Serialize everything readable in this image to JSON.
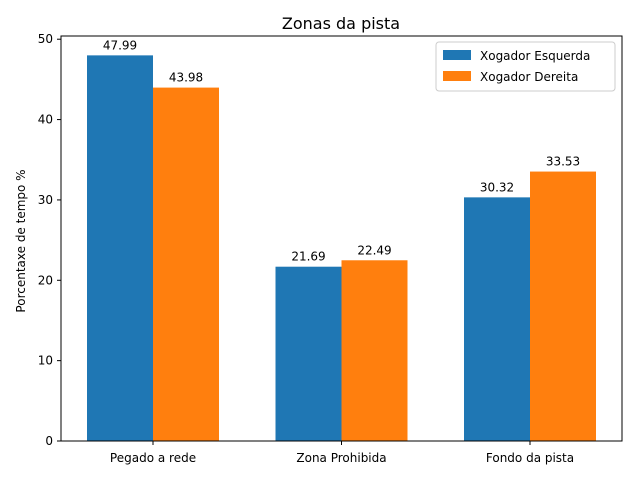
{
  "chart_data": {
    "type": "bar",
    "title": "Zonas da pista",
    "xlabel": "",
    "ylabel": "Porcentaxe de tempo %",
    "categories": [
      "Pegado a rede",
      "Zona Prohibida",
      "Fondo da pista"
    ],
    "series": [
      {
        "name": "Xogador Esquerda",
        "color": "#1f77b4",
        "values": [
          47.99,
          21.69,
          30.32
        ]
      },
      {
        "name": "Xogador Dereita",
        "color": "#ff7f0e",
        "values": [
          43.98,
          22.49,
          33.53
        ]
      }
    ],
    "ylim": [
      0,
      50.4
    ],
    "yticks": [
      "0",
      "10",
      "20",
      "30",
      "40",
      "50"
    ],
    "data_labels": true,
    "grid": false,
    "legend": "top-right"
  }
}
